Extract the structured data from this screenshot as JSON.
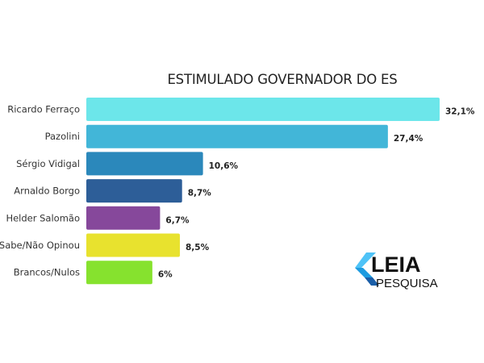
{
  "chart_data": {
    "type": "bar",
    "orientation": "horizontal",
    "title": "ESTIMULADO GOVERNADOR DO ES",
    "categories": [
      "Ricardo Ferraço",
      "Pazolini",
      "Sérgio Vidigal",
      "Arnaldo Borgo",
      "Helder Salomão",
      "Sabe/Não Opinou",
      "Brancos/Nulos"
    ],
    "values": [
      32.1,
      27.4,
      10.6,
      8.7,
      6.7,
      8.5,
      6
    ],
    "value_labels": [
      "32,1%",
      "27,4%",
      "10,6%",
      "8,7%",
      "6,7%",
      "8,5%",
      "6%"
    ],
    "colors": [
      "#6ce6ea",
      "#42b6d8",
      "#2b88bb",
      "#2d5e98",
      "#86489b",
      "#e8e22e",
      "#86e22e"
    ],
    "xlabel": "",
    "ylabel": "",
    "xlim": [
      0,
      32.1
    ],
    "grid": false,
    "legend": "none"
  },
  "logo": {
    "line1": "LEIA",
    "line2": "PESQUISA"
  }
}
